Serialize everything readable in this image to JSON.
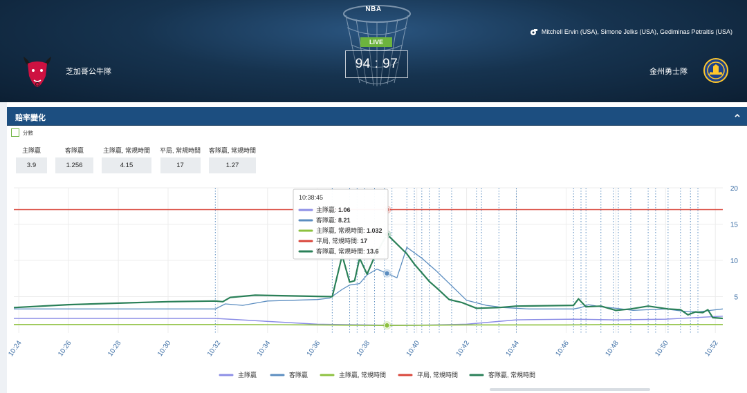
{
  "header": {
    "league": "NBA",
    "status": "LIVE",
    "score": "94 : 97",
    "referees": "Mitchell Ervin (USA), Simone Jelks (USA), Gediminas Petraitis (USA)",
    "home_team": "芝加哥公牛隊",
    "away_team": "金州勇士隊"
  },
  "panel": {
    "title": "賠率變化",
    "score_toggle_label": "分數"
  },
  "odds": [
    {
      "label": "主隊贏",
      "value": "3.9"
    },
    {
      "label": "客隊贏",
      "value": "1.256"
    },
    {
      "label": "主隊贏, 常規時間",
      "value": "4.15"
    },
    {
      "label": "平局, 常規時間",
      "value": "17"
    },
    {
      "label": "客隊贏, 常規時間",
      "value": "1.27"
    }
  ],
  "colors": {
    "home_win": "#8c8ee6",
    "away_win": "#5b8dc0",
    "home_win_regular": "#8dc13f",
    "draw_regular": "#d9453a",
    "away_win_regular": "#2a8058",
    "axis_text": "#3c6ea5",
    "panel_bar": "#1c4e80"
  },
  "chart_data": {
    "type": "line",
    "x_ticks": [
      "10:24",
      "10:26",
      "10:28",
      "10:30",
      "10:32",
      "10:34",
      "10:36",
      "10:38",
      "10:40",
      "10:42",
      "10:44",
      "10:46",
      "10:48",
      "10:50",
      "10:52"
    ],
    "y_ticks": [
      5,
      10,
      15,
      20
    ],
    "ylim": [
      0,
      20
    ],
    "xlim_minutes": [
      23.8,
      52.3
    ],
    "grid": true,
    "legend_placement": "bottom",
    "event_markers_minutes": [
      31.9,
      36.6,
      37.3,
      37.6,
      37.9,
      38.3,
      38.7,
      39.0,
      39.6,
      39.9,
      40.2,
      40.5,
      40.9,
      41.4,
      42.4,
      42.6,
      43.3,
      44.0,
      46.3,
      46.6,
      46.8,
      47.4,
      47.9,
      48.1,
      48.6,
      49.3,
      49.6,
      50.1,
      50.6,
      51.0,
      51.3
    ],
    "series": [
      {
        "name": "主隊贏",
        "x": [
          23.8,
          30.0,
          31.9,
          36.0,
          38.8,
          40.0,
          42.0,
          44.0,
          46.3,
          48.0,
          50.0,
          52.3
        ],
        "y": [
          2.0,
          2.0,
          2.0,
          1.2,
          1.06,
          1.06,
          1.2,
          1.8,
          1.9,
          1.8,
          1.9,
          2.3
        ]
      },
      {
        "name": "客隊贏",
        "x": [
          23.8,
          27.0,
          31.9,
          32.3,
          33.0,
          34.0,
          36.0,
          36.5,
          37.0,
          37.3,
          37.7,
          38.0,
          38.4,
          38.8,
          39.2,
          39.6,
          40.2,
          40.8,
          41.4,
          42.0,
          42.8,
          43.5,
          44.5,
          46.3,
          46.6,
          46.9,
          47.4,
          48.0,
          48.7,
          49.3,
          50.0,
          50.7,
          51.3,
          51.8,
          52.3
        ],
        "y": [
          3.3,
          3.3,
          3.3,
          4.0,
          3.8,
          4.4,
          4.6,
          4.8,
          6.0,
          6.6,
          6.8,
          8.0,
          8.8,
          8.21,
          7.6,
          11.8,
          10.3,
          8.5,
          6.5,
          4.5,
          3.8,
          3.5,
          3.3,
          3.3,
          3.5,
          3.9,
          3.6,
          3.4,
          3.1,
          3.2,
          3.3,
          3.0,
          2.9,
          3.1,
          3.3
        ]
      },
      {
        "name": "主隊贏, 常規時間",
        "x": [
          23.8,
          30.0,
          31.9,
          36.0,
          38.0,
          38.8,
          40.0,
          42.0,
          44.0,
          46.0,
          48.0,
          50.0,
          52.3
        ],
        "y": [
          1.15,
          1.15,
          1.15,
          1.1,
          1.05,
          1.032,
          1.05,
          1.1,
          1.1,
          1.1,
          1.15,
          1.15,
          1.15
        ]
      },
      {
        "name": "平局, 常規時間",
        "x": [
          23.8,
          52.3
        ],
        "y": [
          17,
          17
        ]
      },
      {
        "name": "客隊贏, 常規時間",
        "x": [
          23.8,
          26.0,
          28.0,
          30.0,
          31.9,
          32.2,
          32.5,
          33.5,
          36.6,
          37.0,
          37.3,
          37.5,
          37.7,
          38.0,
          38.3,
          38.8,
          39.6,
          39.9,
          40.5,
          40.8,
          41.3,
          41.8,
          42.4,
          43.3,
          44.0,
          46.3,
          46.5,
          46.8,
          47.4,
          48.0,
          48.6,
          49.3,
          50.1,
          50.6,
          50.9,
          51.2,
          51.5,
          51.7,
          51.9,
          52.3
        ],
        "y": [
          3.5,
          3.9,
          4.1,
          4.3,
          4.4,
          4.3,
          4.9,
          5.2,
          5.0,
          10.7,
          7.0,
          7.2,
          10.3,
          8.1,
          10.5,
          13.6,
          10.9,
          9.5,
          7.1,
          6.2,
          4.6,
          4.2,
          3.4,
          3.5,
          3.7,
          3.8,
          4.7,
          3.6,
          3.7,
          3.1,
          3.3,
          3.7,
          3.3,
          3.2,
          2.5,
          2.9,
          2.8,
          3.2,
          2.1,
          2.0
        ]
      }
    ],
    "tooltip": {
      "time": "10:38:45",
      "rows": [
        {
          "label": "主隊贏: ",
          "value": "1.06"
        },
        {
          "label": "客隊贏: ",
          "value": "8.21"
        },
        {
          "label": "主隊贏, 常規時間: ",
          "value": "1.032"
        },
        {
          "label": "平局, 常規時間: ",
          "value": "17"
        },
        {
          "label": "客隊贏, 常規時間: ",
          "value": "13.6"
        }
      ]
    }
  }
}
